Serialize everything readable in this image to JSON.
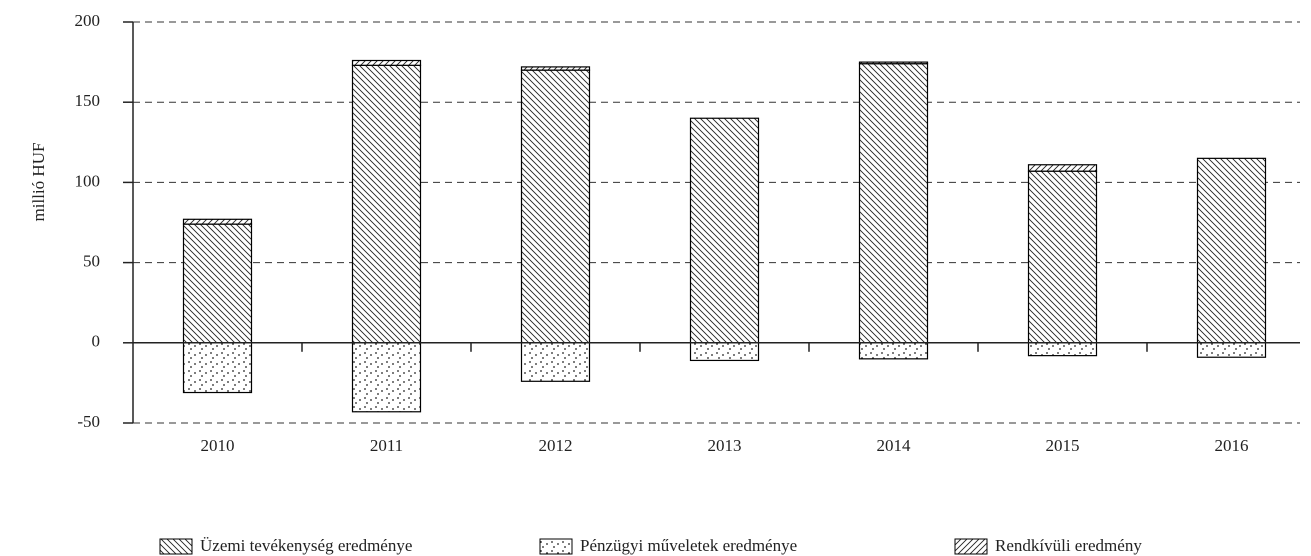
{
  "chart_data": {
    "type": "stacked-bar",
    "y_label": "millió HUF",
    "categories": [
      "2010",
      "2011",
      "2012",
      "2013",
      "2014",
      "2015",
      "2016"
    ],
    "series": [
      {
        "name": "Üzemi tevékenység eredménye",
        "color": "#000000",
        "pattern": "backward-diagonal",
        "values": [
          74,
          173,
          170,
          140,
          174,
          107,
          115
        ]
      },
      {
        "name": "Pénzügyi műveletek eredménye",
        "color": "#000000",
        "pattern": "dots",
        "values": [
          -31,
          -43,
          -24,
          -11,
          -10,
          -8,
          -9
        ]
      },
      {
        "name": "Rendkívüli eredmény",
        "color": "#000000",
        "pattern": "forward-diagonal",
        "values": [
          3,
          3,
          2,
          0,
          1,
          4,
          0
        ]
      }
    ],
    "ylim": [
      -50,
      200
    ],
    "yticks": [
      -50,
      0,
      50,
      100,
      150,
      200
    ],
    "grid": true,
    "legend": "bottom"
  }
}
